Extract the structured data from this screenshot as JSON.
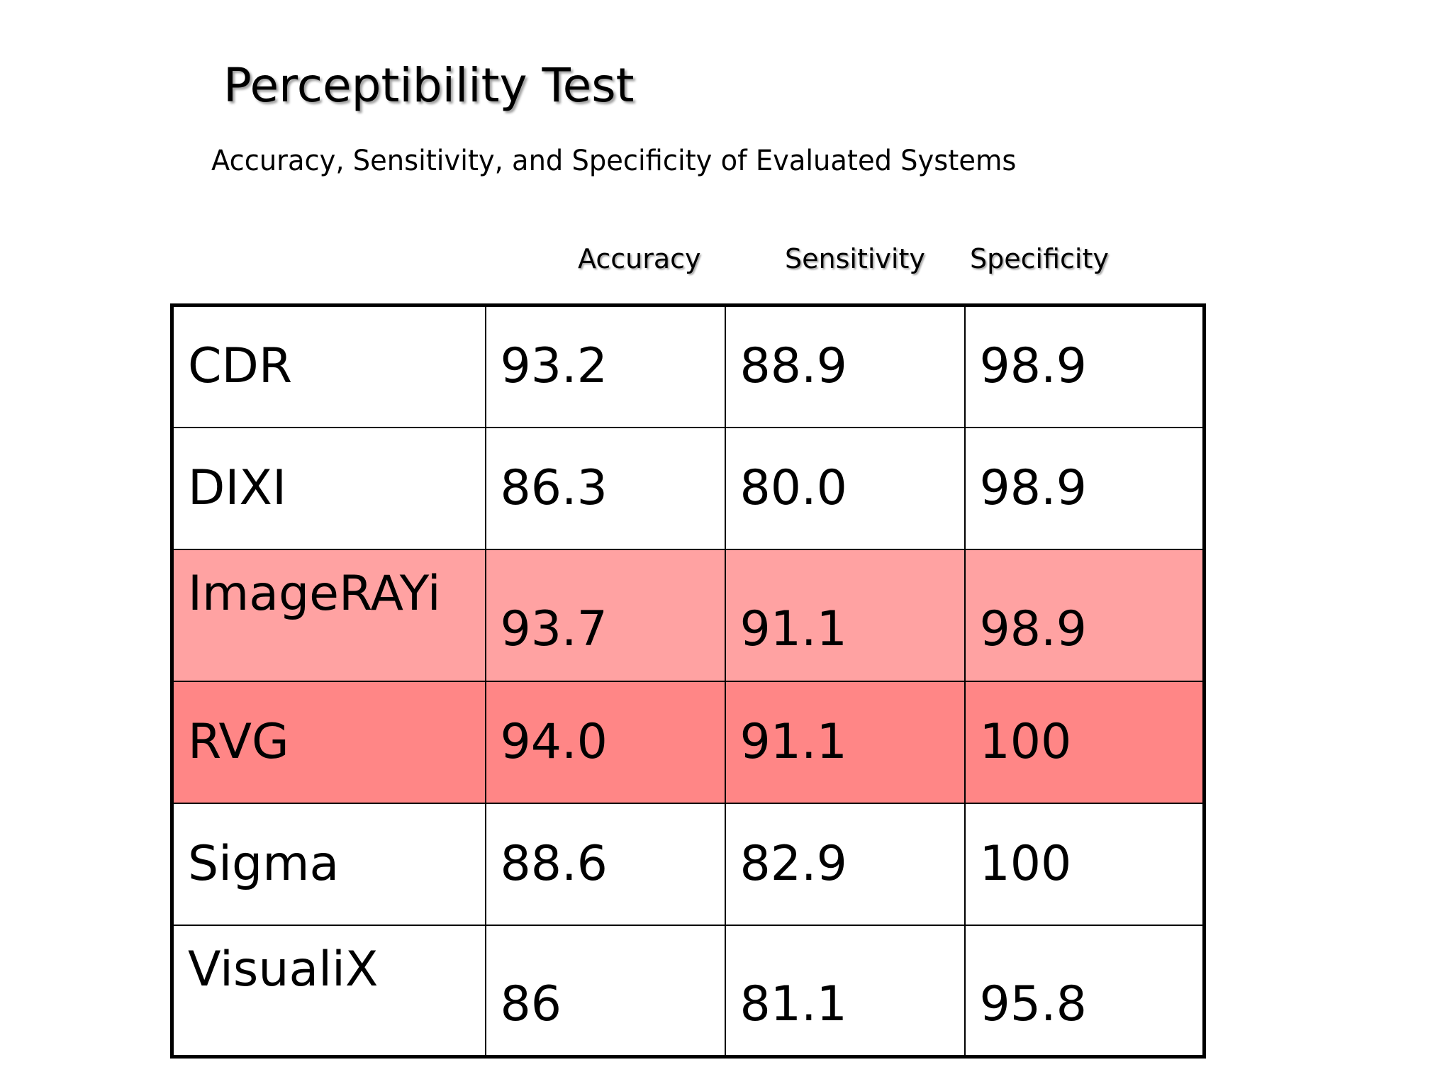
{
  "slide": {
    "title": "Perceptibility Test",
    "subtitle": "Accuracy, Sensitivity, and Specificity of Evaluated Systems"
  },
  "table": {
    "columns": [
      "Accuracy",
      "Sensitivity",
      "Specificity"
    ],
    "rows": [
      {
        "system": "CDR",
        "accuracy": "93.2",
        "sensitivity": "88.9",
        "specificity": "98.9",
        "highlight": "none"
      },
      {
        "system": "DIXI",
        "accuracy": "86.3",
        "sensitivity": "80.0",
        "specificity": "98.9",
        "highlight": "none"
      },
      {
        "system": "ImageRAYi",
        "accuracy": "93.7",
        "sensitivity": "91.1",
        "specificity": "98.9",
        "highlight": "light-red"
      },
      {
        "system": "RVG",
        "accuracy": "94.0",
        "sensitivity": "91.1",
        "specificity": "100",
        "highlight": "red"
      },
      {
        "system": "Sigma",
        "accuracy": "88.6",
        "sensitivity": "82.9",
        "specificity": "100",
        "highlight": "none"
      },
      {
        "system": "VisualiX",
        "accuracy": "86",
        "sensitivity": "81.1",
        "specificity": "95.8",
        "highlight": "none"
      }
    ]
  },
  "colors": {
    "highlight_light_red": "#ffa2a2",
    "highlight_red": "#ff8686"
  }
}
